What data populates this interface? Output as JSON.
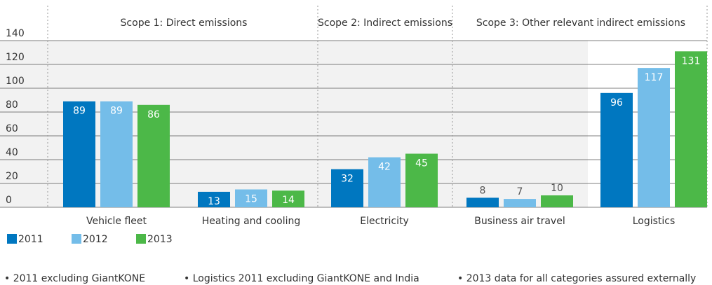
{
  "chart_data": {
    "type": "bar",
    "annotations": [
      "Scope 1: Direct emissions",
      "Scope 2: Indirect emissions",
      "Scope 3: Other relevant indirect emissions"
    ],
    "categories": [
      "Vehicle fleet",
      "Heating and cooling",
      "Electricity",
      "Business air travel",
      "Logistics"
    ],
    "series": [
      {
        "name": "2011",
        "color": "#0077c0",
        "values": [
          89,
          13,
          32,
          8,
          96
        ]
      },
      {
        "name": "2012",
        "color": "#74bde9",
        "values": [
          89,
          15,
          42,
          7,
          117
        ]
      },
      {
        "name": "2013",
        "color": "#4cb848",
        "values": [
          86,
          14,
          45,
          10,
          131
        ]
      }
    ],
    "ylim": [
      0,
      140
    ],
    "yticks": [
      0,
      20,
      40,
      60,
      80,
      100,
      120,
      140
    ],
    "grid": true,
    "notes": [
      "• 2011 excluding GiantKONE",
      "• Logistics 2011 excluding GiantKONE and India",
      "• 2013 data for all categories assured externally"
    ]
  }
}
